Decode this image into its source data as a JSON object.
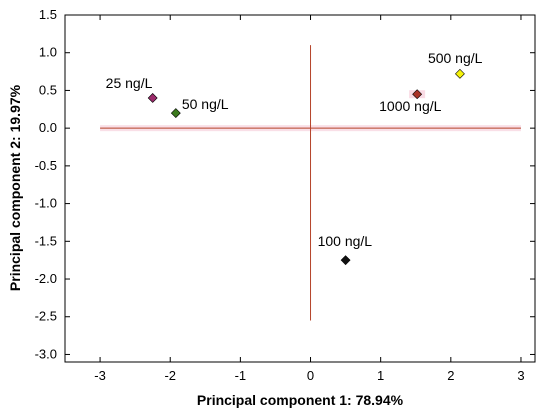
{
  "chart_data": {
    "type": "scatter",
    "title": "",
    "xlabel": "Principal component 1: 78.94%",
    "ylabel": "Principal component 2: 19.97%",
    "xlim": [
      -3.5,
      3.2
    ],
    "ylim": [
      -3.1,
      1.5
    ],
    "x_ticks": [
      -3,
      -2,
      -1,
      0,
      1,
      2,
      3
    ],
    "y_ticks": [
      1.5,
      1.0,
      0.5,
      0.0,
      -0.5,
      -1.0,
      -1.5,
      -2.0,
      -2.5,
      -3.0
    ],
    "x_tick_labels": [
      "-3",
      "-2",
      "-1",
      "0",
      "1",
      "2",
      "3"
    ],
    "y_tick_labels": [
      "1.5",
      "1.0",
      "0.5",
      "0.0",
      "-0.5",
      "-1.0",
      "-1.5",
      "-2.0",
      "-2.5",
      "-3.0"
    ],
    "grid": false,
    "reference_lines": {
      "color": "#b5432a",
      "horizontal": {
        "y": 0.0,
        "x_from": -3.0,
        "x_to": 3.0
      },
      "vertical": {
        "x": 0.0,
        "y_from": 1.1,
        "y_to": -2.55
      }
    },
    "points": [
      {
        "label": "25 ng/L",
        "x": -2.25,
        "y": 0.4,
        "color": "#9b2a6b"
      },
      {
        "label": "50 ng/L",
        "x": -1.92,
        "y": 0.2,
        "color": "#3c7a1e"
      },
      {
        "label": "100 ng/L",
        "x": 0.5,
        "y": -1.75,
        "color": "#111111"
      },
      {
        "label": "500 ng/L",
        "x": 2.13,
        "y": 0.72,
        "color": "#f5f20a"
      },
      {
        "label": "1000 ng/L",
        "x": 1.52,
        "y": 0.45,
        "color": "#a93226"
      }
    ]
  }
}
